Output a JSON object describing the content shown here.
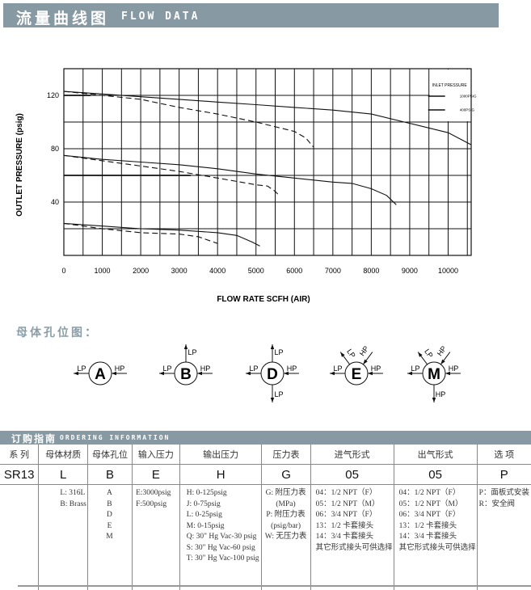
{
  "flow_header": {
    "cn": "流量曲线图",
    "en": "FLOW DATA"
  },
  "chart_data": {
    "type": "line",
    "xlabel": "FLOW RATE SCFH (AIR)",
    "ylabel": "OUTLET PRESSURE (psig)",
    "xlim": [
      0,
      10600
    ],
    "ylim": [
      0,
      140
    ],
    "x_ticks": [
      0,
      1000,
      2000,
      3000,
      4000,
      5000,
      6000,
      7000,
      8000,
      9000,
      10000
    ],
    "y_ticks": [
      40,
      80,
      120
    ],
    "grid": true,
    "legend": {
      "title": "INLET PRESSURE",
      "placement": "top-right",
      "entries": [
        "1000PSIG",
        "400PSIG"
      ]
    },
    "series": [
      {
        "group": "1000PSIG",
        "style": "solid",
        "points": [
          [
            0,
            123
          ],
          [
            1000,
            121
          ],
          [
            2000,
            119
          ],
          [
            3000,
            117
          ],
          [
            4000,
            115
          ],
          [
            5000,
            113
          ],
          [
            6000,
            111
          ],
          [
            7000,
            109
          ],
          [
            8000,
            106
          ],
          [
            9000,
            99
          ],
          [
            10000,
            92
          ],
          [
            10600,
            83
          ]
        ]
      },
      {
        "group": "400PSIG",
        "style": "dashed",
        "points": [
          [
            0,
            123
          ],
          [
            1000,
            120
          ],
          [
            2000,
            117
          ],
          [
            3000,
            111
          ],
          [
            4000,
            106
          ],
          [
            5000,
            100
          ],
          [
            6000,
            93
          ],
          [
            6300,
            88
          ],
          [
            6500,
            81
          ]
        ]
      },
      {
        "group": "1000PSIG",
        "style": "solid",
        "points": [
          [
            0,
            75
          ],
          [
            1000,
            72
          ],
          [
            2000,
            70
          ],
          [
            3000,
            68
          ],
          [
            4000,
            65
          ],
          [
            5000,
            61
          ],
          [
            6000,
            58
          ],
          [
            7000,
            55
          ],
          [
            7500,
            54
          ],
          [
            8000,
            50
          ],
          [
            8400,
            45
          ],
          [
            8650,
            38
          ]
        ]
      },
      {
        "group": "400PSIG",
        "style": "dashed",
        "points": [
          [
            0,
            75
          ],
          [
            1000,
            71
          ],
          [
            2000,
            67
          ],
          [
            3000,
            63
          ],
          [
            4000,
            58
          ],
          [
            5000,
            53
          ],
          [
            5300,
            52
          ],
          [
            5500,
            48
          ],
          [
            5600,
            45
          ]
        ]
      },
      {
        "group": "1000PSIG",
        "style": "solid",
        "points": [
          [
            0,
            24
          ],
          [
            1000,
            22
          ],
          [
            2000,
            20
          ],
          [
            3000,
            19
          ],
          [
            4000,
            17
          ],
          [
            4500,
            15
          ],
          [
            4900,
            10
          ],
          [
            5100,
            7
          ]
        ]
      },
      {
        "group": "400PSIG",
        "style": "dashed",
        "points": [
          [
            0,
            24
          ],
          [
            1000,
            20
          ],
          [
            2000,
            17
          ],
          [
            3000,
            16
          ],
          [
            3500,
            14
          ],
          [
            4000,
            9
          ]
        ]
      }
    ]
  },
  "holes": {
    "title": "母体孔位图：",
    "diagrams": [
      {
        "letter": "A",
        "ports": [
          {
            "label": "LP",
            "dir": "left",
            "flow": "out"
          },
          {
            "label": "HP",
            "dir": "right",
            "flow": "in"
          }
        ]
      },
      {
        "letter": "B",
        "ports": [
          {
            "label": "LP",
            "dir": "left",
            "flow": "out"
          },
          {
            "label": "HP",
            "dir": "right",
            "flow": "in"
          },
          {
            "label": "LP",
            "dir": "up",
            "flow": "out"
          }
        ]
      },
      {
        "letter": "D",
        "ports": [
          {
            "label": "LP",
            "dir": "left",
            "flow": "out"
          },
          {
            "label": "HP",
            "dir": "right",
            "flow": "in"
          },
          {
            "label": "LP",
            "dir": "up",
            "flow": "out"
          },
          {
            "label": "LP",
            "dir": "down",
            "flow": "out"
          }
        ]
      },
      {
        "letter": "E",
        "ports": [
          {
            "label": "LP",
            "dir": "left",
            "flow": "out"
          },
          {
            "label": "HP",
            "dir": "right",
            "flow": "in"
          },
          {
            "label": "LP",
            "dir": "up-left",
            "flow": "out"
          },
          {
            "label": "HP",
            "dir": "up-right",
            "flow": "in"
          }
        ]
      },
      {
        "letter": "M",
        "ports": [
          {
            "label": "LP",
            "dir": "left",
            "flow": "out"
          },
          {
            "label": "HP",
            "dir": "right",
            "flow": "in"
          },
          {
            "label": "LP",
            "dir": "up-left",
            "flow": "out"
          },
          {
            "label": "HP",
            "dir": "up-right",
            "flow": "in"
          },
          {
            "label": "HP",
            "dir": "down",
            "flow": "out"
          }
        ]
      }
    ]
  },
  "ordering": {
    "cn": "订购指南",
    "en": "ORDERING INFORMATION",
    "headers": [
      "系 列",
      "母体材质",
      "母体孔位",
      "输入压力",
      "输出压力",
      "压力表",
      "进气形式",
      "出气形式",
      "选 项"
    ],
    "codes": [
      "SR13",
      "L",
      "B",
      "E",
      "H",
      "G",
      "05",
      "05",
      "P"
    ],
    "details": [
      [],
      [
        "L:  316L",
        "B:  Brass"
      ],
      [
        "A",
        "B",
        "D",
        "E",
        "M"
      ],
      [
        "E:3000psig",
        "F:500psig"
      ],
      [
        "H: 0-125psig",
        "J:  0-75psig",
        "L:  0-25psig",
        "M:  0-15psig",
        "Q: 30\" Hg Vac-30 psig",
        "S: 30\" Hg Vac-60 psig",
        "T: 30\" Hg Vac-100 psig"
      ],
      [
        "G: 附压力表",
        "(MPa)",
        "P: 附压力表",
        "(psig/bar)",
        "W: 无压力表"
      ],
      [
        "04：1/2  NPT（F）",
        "05：1/2  NPT（M）",
        "06：3/4  NPT（F）",
        "13：1/2  卡套接头",
        "14：3/4  卡套接头",
        "其它形式接头可供选择"
      ],
      [
        "04：1/2   NPT（F）",
        "05：1/2   NPT（M）",
        "06：3/4   NPT（F）",
        "13：1/2   卡套接头",
        "14：3/4   卡套接头",
        "其它形式接头可供选择"
      ],
      [
        "P：面板式安装",
        "R：安全阀"
      ]
    ]
  }
}
